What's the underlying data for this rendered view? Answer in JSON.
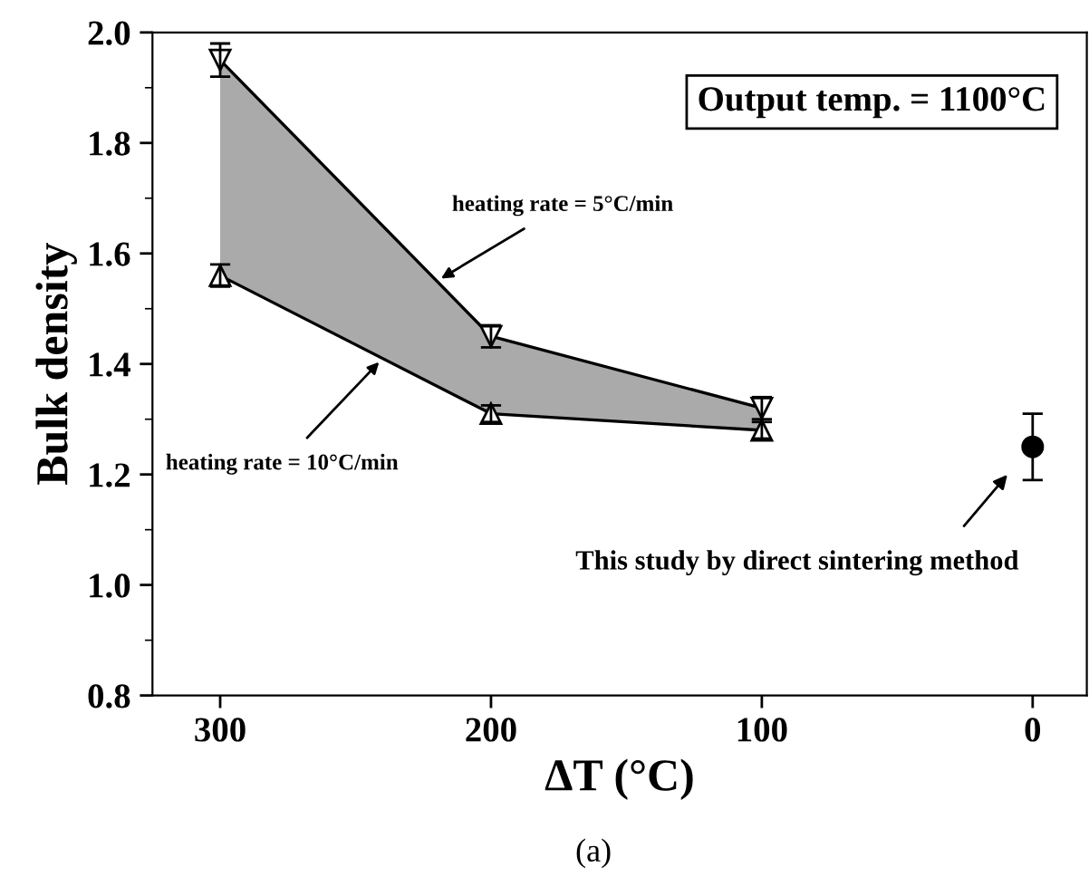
{
  "chart_data": {
    "type": "line",
    "xlabel": "ΔT (°C)",
    "ylabel": "Bulk density",
    "x": [
      300,
      200,
      100
    ],
    "xlim": [
      325,
      -20
    ],
    "xticks": [
      300,
      200,
      100,
      0
    ],
    "ylim": [
      0.8,
      2.0
    ],
    "yticks": [
      {
        "value": 0.8,
        "label": "0.8"
      },
      {
        "value": 1.0,
        "label": "1.0"
      },
      {
        "value": 1.2,
        "label": "1.2"
      },
      {
        "value": 1.4,
        "label": "1.4"
      },
      {
        "value": 1.6,
        "label": "1.6"
      },
      {
        "value": 1.8,
        "label": "1.8"
      },
      {
        "value": 2.0,
        "label": "2.0"
      }
    ],
    "marker": "triangle",
    "line_style": "solid",
    "grid": false,
    "legend": false,
    "series": [
      {
        "name": "heating rate = 5°C/min",
        "color": "#000000",
        "values": [
          1.95,
          1.45,
          1.32
        ],
        "errors": [
          0.03,
          0.02,
          0.02
        ],
        "lower": [
          1.56,
          1.31,
          1.28
        ],
        "upper": [
          1.95,
          1.45,
          1.32
        ]
      },
      {
        "name": "heating rate = 10°C/min",
        "color": "#000000",
        "values": [
          1.56,
          1.31,
          1.28
        ],
        "errors": [
          0.02,
          0.015,
          0.015
        ]
      },
      {
        "type": "scatter",
        "marker": "circle",
        "x": [
          0
        ],
        "color": "#000000",
        "values": [
          1.25
        ],
        "errors": [
          0.06
        ]
      }
    ],
    "annotations": [
      "Output temp. = 1100°C",
      "This study by direct sintering method",
      "(a)"
    ]
  }
}
